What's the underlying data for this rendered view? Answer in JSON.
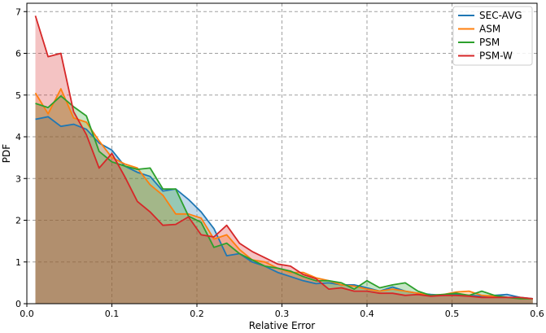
{
  "chart_data": {
    "type": "area",
    "xlabel": "Relative Error",
    "ylabel": "PDF",
    "xlim": [
      0,
      0.6
    ],
    "ylim": [
      0,
      7.2
    ],
    "xticks": [
      "0.0",
      "0.1",
      "0.2",
      "0.3",
      "0.4",
      "0.5",
      "0.6"
    ],
    "yticks": [
      "0",
      "1",
      "2",
      "3",
      "4",
      "5",
      "6",
      "7"
    ],
    "grid": true,
    "legend_position": "top-right",
    "x": [
      0.01,
      0.025,
      0.04,
      0.055,
      0.07,
      0.085,
      0.1,
      0.115,
      0.13,
      0.145,
      0.16,
      0.175,
      0.19,
      0.205,
      0.22,
      0.235,
      0.25,
      0.265,
      0.28,
      0.295,
      0.31,
      0.325,
      0.34,
      0.355,
      0.37,
      0.385,
      0.4,
      0.415,
      0.43,
      0.445,
      0.46,
      0.475,
      0.49,
      0.505,
      0.52,
      0.535,
      0.55,
      0.565,
      0.58,
      0.595
    ],
    "series": [
      {
        "name": "SEC-AVG",
        "color": "#1f77b4",
        "values": [
          4.42,
          4.48,
          4.25,
          4.3,
          4.18,
          3.85,
          3.68,
          3.3,
          3.15,
          3.05,
          2.7,
          2.75,
          2.5,
          2.2,
          1.8,
          1.15,
          1.2,
          1.0,
          0.9,
          0.75,
          0.65,
          0.55,
          0.48,
          0.5,
          0.45,
          0.45,
          0.38,
          0.3,
          0.4,
          0.3,
          0.25,
          0.22,
          0.2,
          0.22,
          0.2,
          0.18,
          0.2,
          0.22,
          0.15,
          0.12
        ]
      },
      {
        "name": "ASM",
        "color": "#ff7f0e",
        "values": [
          5.05,
          4.55,
          5.15,
          4.45,
          4.35,
          3.9,
          3.5,
          3.35,
          3.25,
          2.85,
          2.6,
          2.15,
          2.15,
          2.05,
          1.55,
          1.65,
          1.3,
          1.05,
          1.0,
          0.85,
          0.75,
          0.75,
          0.62,
          0.55,
          0.45,
          0.42,
          0.35,
          0.3,
          0.35,
          0.3,
          0.25,
          0.2,
          0.22,
          0.28,
          0.3,
          0.2,
          0.18,
          0.15,
          0.12,
          0.12
        ]
      },
      {
        "name": "PSM",
        "color": "#2ca02c",
        "values": [
          4.8,
          4.7,
          4.98,
          4.72,
          4.5,
          3.65,
          3.4,
          3.3,
          3.22,
          3.25,
          2.75,
          2.75,
          2.1,
          1.95,
          1.35,
          1.45,
          1.2,
          1.05,
          0.9,
          0.85,
          0.78,
          0.65,
          0.55,
          0.55,
          0.5,
          0.35,
          0.55,
          0.38,
          0.45,
          0.5,
          0.3,
          0.2,
          0.22,
          0.25,
          0.2,
          0.3,
          0.2,
          0.15,
          0.12,
          0.12
        ]
      },
      {
        "name": "PSM-W",
        "color": "#d62728",
        "values": [
          6.9,
          5.92,
          6.0,
          4.6,
          4.05,
          3.25,
          3.6,
          3.05,
          2.45,
          2.2,
          1.88,
          1.9,
          2.08,
          1.65,
          1.6,
          1.88,
          1.45,
          1.25,
          1.1,
          0.95,
          0.9,
          0.7,
          0.6,
          0.35,
          0.38,
          0.3,
          0.3,
          0.25,
          0.25,
          0.2,
          0.22,
          0.18,
          0.2,
          0.2,
          0.18,
          0.15,
          0.15,
          0.15,
          0.15,
          0.12
        ]
      }
    ]
  }
}
